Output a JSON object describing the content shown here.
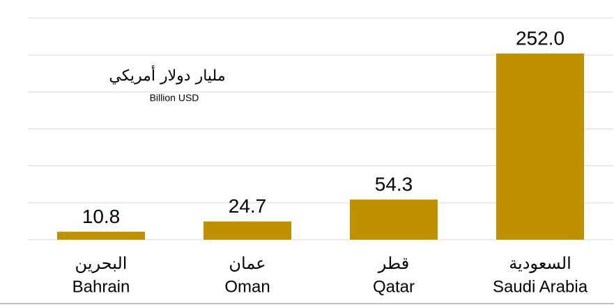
{
  "chart_data": {
    "type": "bar",
    "categories": [
      "Bahrain",
      "Oman",
      "Qatar",
      "Saudi Arabia"
    ],
    "categories_ar": [
      "البحرين",
      "عمان",
      "قطر",
      "السعودية"
    ],
    "values": [
      10.8,
      24.7,
      54.3,
      252.0
    ],
    "value_labels": [
      "10.8",
      "24.7",
      "54.3",
      "252.0"
    ],
    "color": "#bf9000",
    "annotation_ar": "مليار دولار أمريكي",
    "annotation": "Billion USD",
    "ylim": [
      0,
      300
    ],
    "yticks": [
      0,
      50,
      100,
      150,
      200,
      250,
      300
    ],
    "grid": true
  }
}
